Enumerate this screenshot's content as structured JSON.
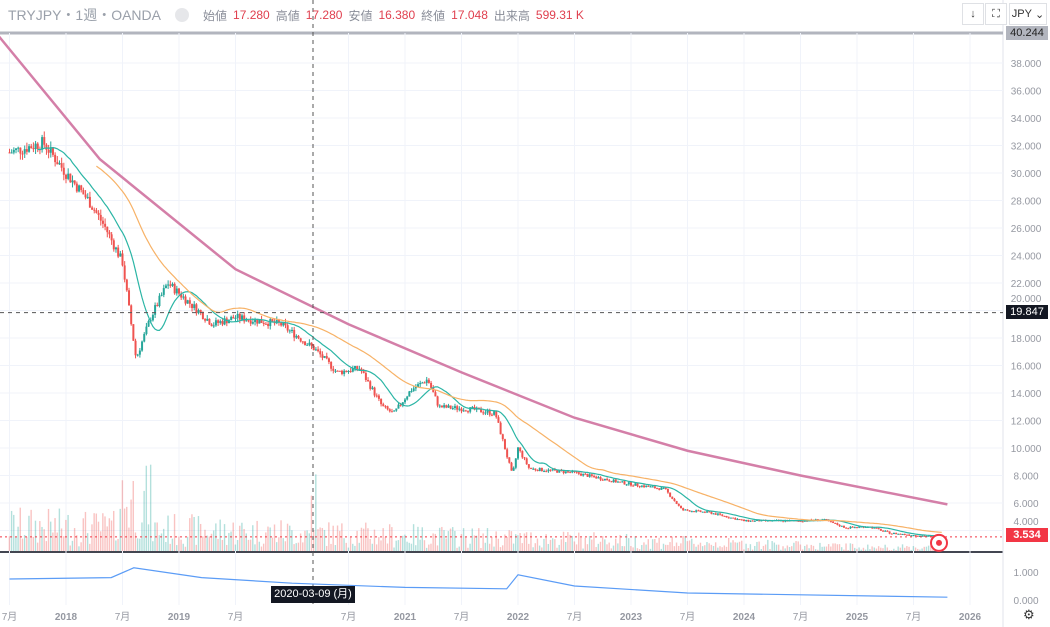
{
  "header": {
    "symbol": "TRYJPY・1週・OANDA",
    "open_label": "始値",
    "open": "17.280",
    "high_label": "高値",
    "high": "17.280",
    "low_label": "安値",
    "low": "16.380",
    "close_label": "終値",
    "close": "17.048",
    "volume_label": "出来高",
    "volume": "599.31 K"
  },
  "toolbar": {
    "down_icon": "↓",
    "fullscreen_icon": "⛶",
    "currency": "JPY"
  },
  "price_labels": {
    "top": "40.244",
    "crosshair": "19.847",
    "last": "3.534"
  },
  "crosshair_date": "2020-03-09 (月)",
  "colors": {
    "up": "#26a69a",
    "down": "#ef5350",
    "last": "#f23645"
  },
  "chart_data": {
    "type": "candlestick",
    "ylim": [
      2.8,
      40.6
    ],
    "yticks": [
      "38.000",
      "36.000",
      "34.000",
      "32.000",
      "30.000",
      "28.000",
      "26.000",
      "24.000",
      "22.000",
      "20.000",
      "18.000",
      "16.000",
      "14.000",
      "12.000",
      "10.000",
      "8.000",
      "6.000",
      "4.000"
    ],
    "xticks": [
      {
        "t": 2017.5,
        "l": "7月"
      },
      {
        "t": 2018,
        "l": "2018"
      },
      {
        "t": 2018.5,
        "l": "7月"
      },
      {
        "t": 2019,
        "l": "2019"
      },
      {
        "t": 2019.5,
        "l": "7月"
      },
      {
        "t": 2020.5,
        "l": "7月"
      },
      {
        "t": 2021,
        "l": "2021"
      },
      {
        "t": 2021.5,
        "l": "7月"
      },
      {
        "t": 2022,
        "l": "2022"
      },
      {
        "t": 2022.5,
        "l": "7月"
      },
      {
        "t": 2023,
        "l": "2023"
      },
      {
        "t": 2023.5,
        "l": "7月"
      },
      {
        "t": 2024,
        "l": "2024"
      },
      {
        "t": 2024.5,
        "l": "7月"
      },
      {
        "t": 2025,
        "l": "2025"
      },
      {
        "t": 2025.5,
        "l": "7月"
      },
      {
        "t": 2026,
        "l": "2026"
      }
    ],
    "price": [
      [
        2017.5,
        31.5
      ],
      [
        2017.8,
        32.2
      ],
      [
        2018.0,
        30
      ],
      [
        2018.2,
        28
      ],
      [
        2018.35,
        26
      ],
      [
        2018.5,
        23.5
      ],
      [
        2018.62,
        16.5
      ],
      [
        2018.75,
        19.5
      ],
      [
        2018.9,
        22
      ],
      [
        2019.1,
        20.5
      ],
      [
        2019.3,
        19
      ],
      [
        2019.5,
        19.5
      ],
      [
        2019.9,
        19
      ],
      [
        2020.2,
        17.2
      ],
      [
        2020.4,
        15.5
      ],
      [
        2020.6,
        15.8
      ],
      [
        2020.8,
        13
      ],
      [
        2020.9,
        12.5
      ],
      [
        2021.05,
        14.2
      ],
      [
        2021.2,
        15
      ],
      [
        2021.3,
        13
      ],
      [
        2021.6,
        12.8
      ],
      [
        2021.8,
        12.5
      ],
      [
        2021.95,
        8
      ],
      [
        2022.0,
        10
      ],
      [
        2022.1,
        8.5
      ],
      [
        2022.5,
        8.2
      ],
      [
        2022.9,
        7.5
      ],
      [
        2023.3,
        7
      ],
      [
        2023.45,
        5.5
      ],
      [
        2023.7,
        5.3
      ],
      [
        2024.0,
        4.7
      ],
      [
        2024.5,
        4.7
      ],
      [
        2024.7,
        4.8
      ],
      [
        2024.9,
        4.2
      ],
      [
        2025.1,
        4.3
      ],
      [
        2025.3,
        3.8
      ],
      [
        2025.6,
        3.6
      ],
      [
        2025.75,
        3.534
      ]
    ],
    "long_ma": [
      [
        2017.4,
        40
      ],
      [
        2018.3,
        31
      ],
      [
        2019.5,
        23
      ],
      [
        2020.5,
        19
      ],
      [
        2021.5,
        15.5
      ],
      [
        2022.5,
        12.2
      ],
      [
        2023.5,
        9.8
      ],
      [
        2024.5,
        8
      ],
      [
        2025.8,
        5.9
      ]
    ],
    "indicator": {
      "yticks": [
        "1.000",
        "0.000"
      ],
      "series": [
        [
          2017.5,
          0.75
        ],
        [
          2018.4,
          0.8
        ],
        [
          2018.6,
          1.15
        ],
        [
          2019.2,
          0.8
        ],
        [
          2020,
          0.6
        ],
        [
          2021,
          0.45
        ],
        [
          2021.9,
          0.4
        ],
        [
          2022.0,
          0.9
        ],
        [
          2022.5,
          0.5
        ],
        [
          2023.5,
          0.25
        ],
        [
          2025.8,
          0.1
        ]
      ]
    }
  }
}
